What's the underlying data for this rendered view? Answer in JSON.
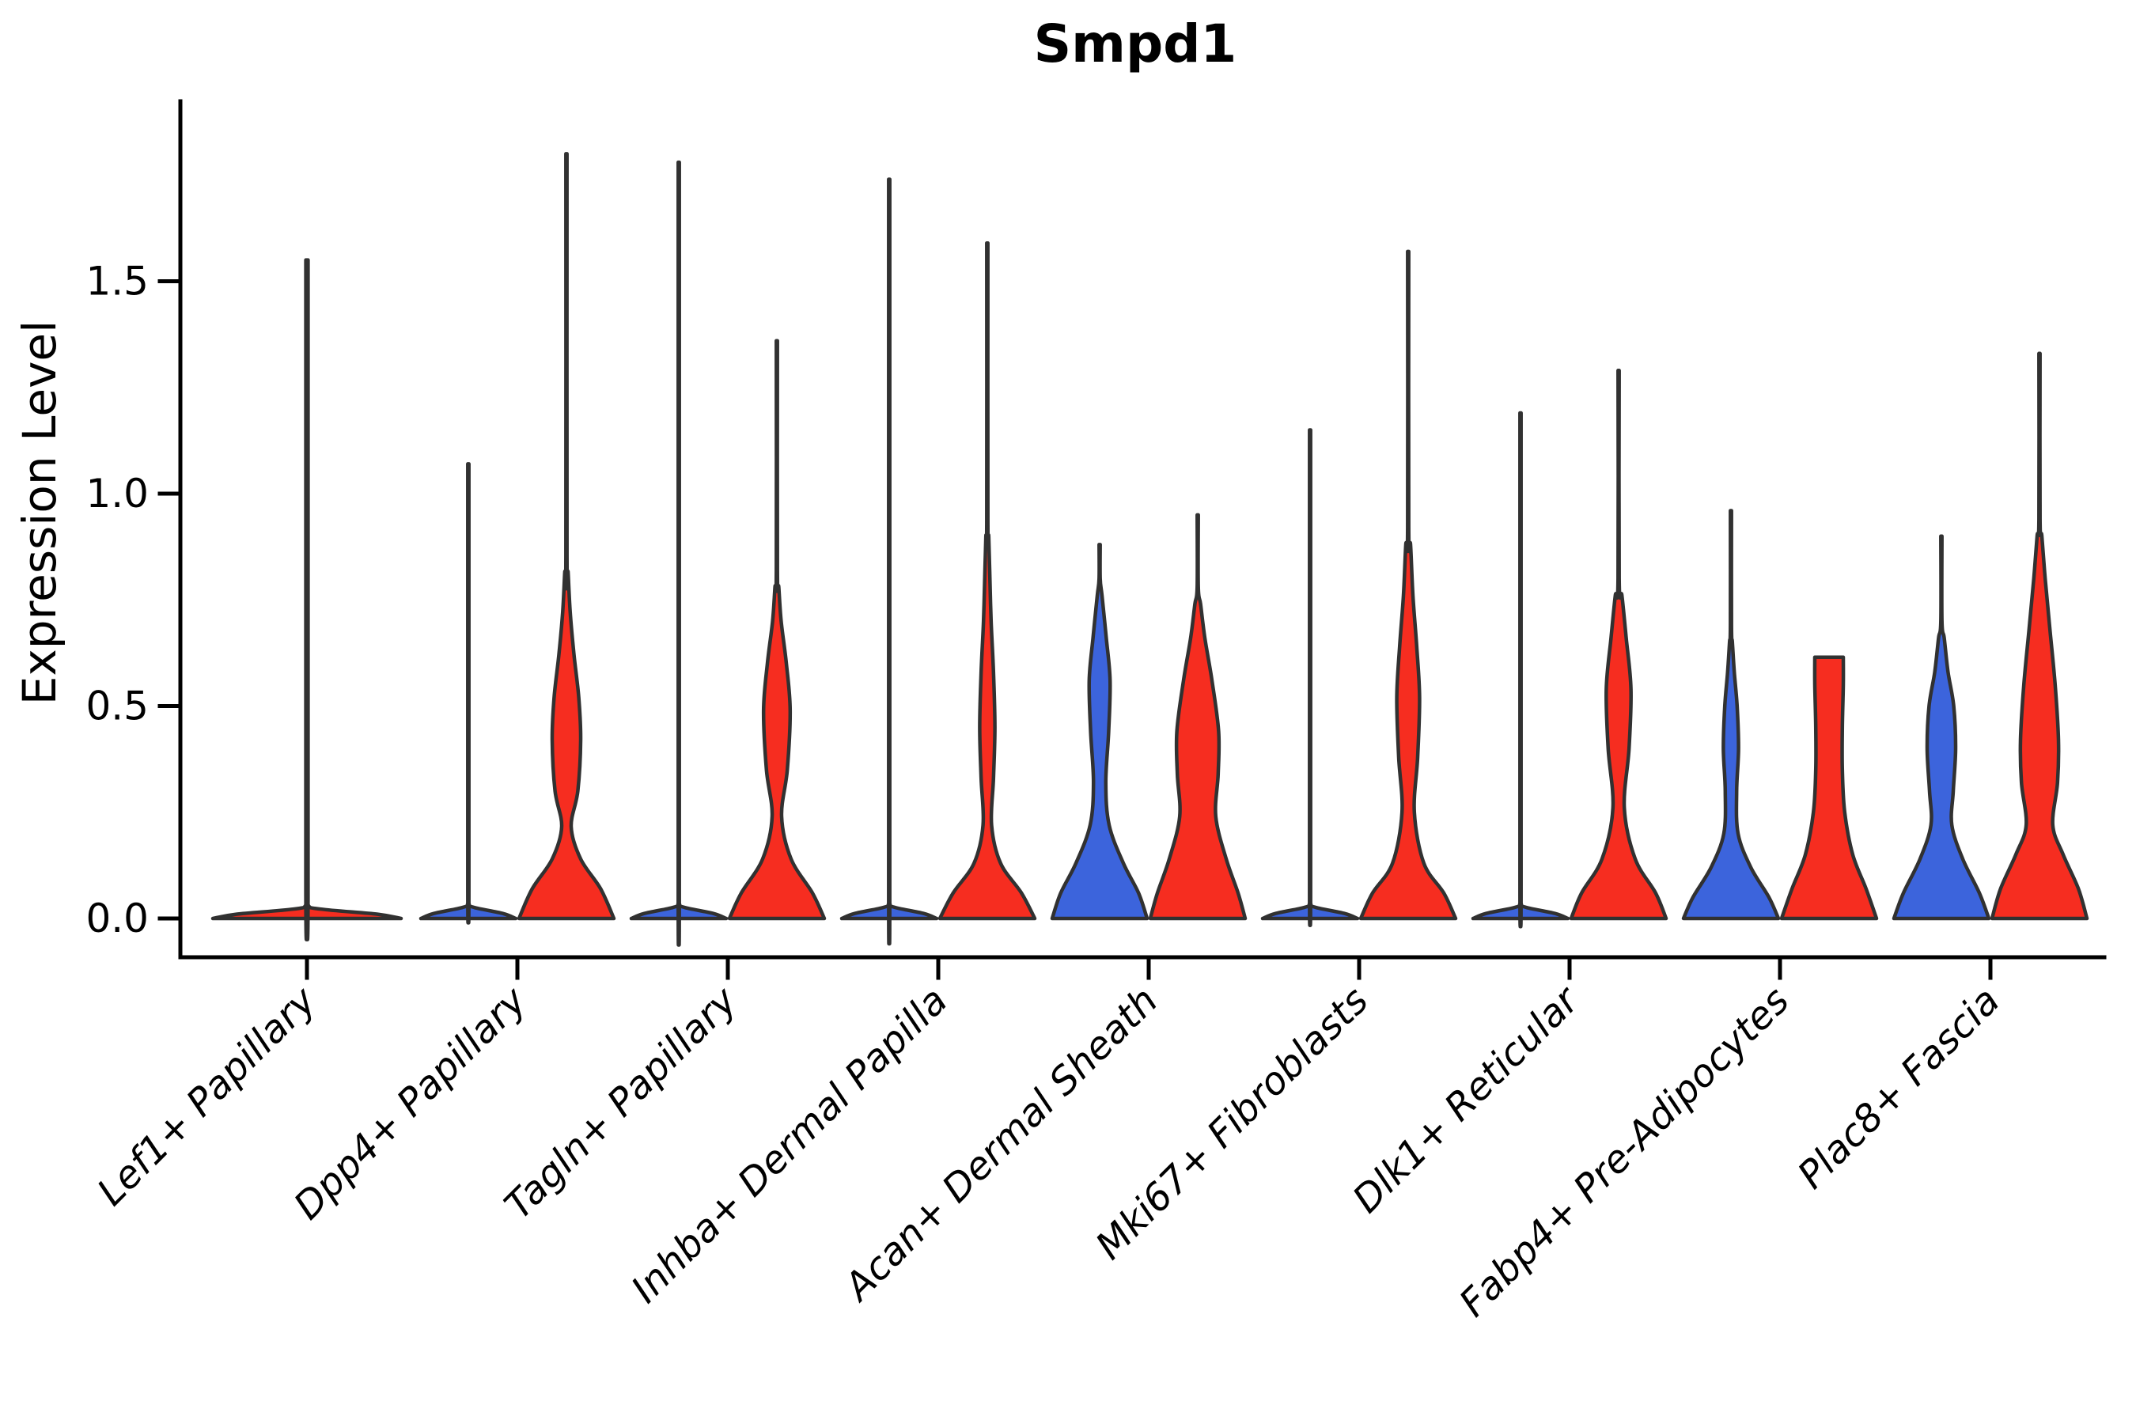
{
  "title": "Smpd1",
  "axes": {
    "ylabel": "Expression Level",
    "ytick_labels": [
      "0.0",
      "0.5",
      "1.0",
      "1.5"
    ]
  },
  "chart_data": {
    "type": "violin",
    "title": "Smpd1",
    "xlabel": "",
    "ylabel": "Expression Level",
    "ylim": [
      0,
      1.92
    ],
    "yticks": [
      0.0,
      0.5,
      1.0,
      1.5
    ],
    "grid": false,
    "legend_position": "none",
    "colors": {
      "blue": "#3c64dc",
      "red": "#f62d20",
      "outline": "#313131",
      "background": "#ffffff"
    },
    "categories": [
      "Lef1+ Papillary",
      "Dpp4+ Papillary",
      "Tagln+ Papillary",
      "Inhba+ Dermal Papilla",
      "Acan+ Dermal Sheath",
      "Mki67+ Fibroblasts",
      "Dlk1+ Reticular",
      "Fabp4+ Pre-Adipocytes",
      "Plac8+ Fascia"
    ],
    "violins": [
      {
        "category_index": 0,
        "side": "center",
        "color": "red",
        "max": 1.55,
        "flat_top": false,
        "profile": [
          [
            0,
            1
          ],
          [
            0.01,
            0.75
          ],
          [
            0.022,
            0.15
          ],
          [
            0.032,
            0.012
          ]
        ]
      },
      {
        "category_index": 1,
        "side": "left",
        "color": "blue",
        "max": 1.07,
        "flat_top": false,
        "profile": [
          [
            0,
            1
          ],
          [
            0.012,
            0.72
          ],
          [
            0.026,
            0.12
          ],
          [
            0.036,
            0.012
          ]
        ]
      },
      {
        "category_index": 1,
        "side": "right",
        "color": "red",
        "max": 1.8,
        "flat_top": false,
        "profile": [
          [
            0,
            1
          ],
          [
            0.07,
            0.72
          ],
          [
            0.14,
            0.3
          ],
          [
            0.216,
            0.1
          ],
          [
            0.3,
            0.24
          ],
          [
            0.42,
            0.3
          ],
          [
            0.52,
            0.26
          ],
          [
            0.62,
            0.16
          ],
          [
            0.72,
            0.08
          ],
          [
            0.815,
            0.035
          ]
        ]
      },
      {
        "category_index": 2,
        "side": "left",
        "color": "blue",
        "max": 1.78,
        "flat_top": false,
        "profile": [
          [
            0,
            1
          ],
          [
            0.012,
            0.72
          ],
          [
            0.026,
            0.12
          ],
          [
            0.036,
            0.012
          ]
        ]
      },
      {
        "category_index": 2,
        "side": "right",
        "color": "red",
        "max": 1.36,
        "flat_top": false,
        "profile": [
          [
            0,
            1
          ],
          [
            0.06,
            0.75
          ],
          [
            0.14,
            0.3
          ],
          [
            0.24,
            0.1
          ],
          [
            0.35,
            0.22
          ],
          [
            0.49,
            0.28
          ],
          [
            0.6,
            0.2
          ],
          [
            0.7,
            0.09
          ],
          [
            0.78,
            0.04
          ]
        ]
      },
      {
        "category_index": 3,
        "side": "left",
        "color": "blue",
        "max": 1.74,
        "flat_top": false,
        "profile": [
          [
            0,
            1
          ],
          [
            0.012,
            0.72
          ],
          [
            0.026,
            0.12
          ],
          [
            0.036,
            0.012
          ]
        ]
      },
      {
        "category_index": 3,
        "side": "right",
        "color": "red",
        "max": 1.59,
        "flat_top": false,
        "profile": [
          [
            0,
            1
          ],
          [
            0.06,
            0.72
          ],
          [
            0.13,
            0.28
          ],
          [
            0.22,
            0.09
          ],
          [
            0.33,
            0.13
          ],
          [
            0.45,
            0.16
          ],
          [
            0.58,
            0.13
          ],
          [
            0.7,
            0.08
          ],
          [
            0.82,
            0.05
          ],
          [
            0.9,
            0.03
          ]
        ]
      },
      {
        "category_index": 4,
        "side": "left",
        "color": "blue",
        "max": 0.88,
        "flat_top": false,
        "profile": [
          [
            0,
            1
          ],
          [
            0.06,
            0.82
          ],
          [
            0.13,
            0.5
          ],
          [
            0.22,
            0.2
          ],
          [
            0.32,
            0.13
          ],
          [
            0.44,
            0.19
          ],
          [
            0.56,
            0.22
          ],
          [
            0.66,
            0.14
          ],
          [
            0.76,
            0.05
          ]
        ]
      },
      {
        "category_index": 4,
        "side": "right",
        "color": "red",
        "max": 0.95,
        "flat_top": false,
        "profile": [
          [
            0,
            1
          ],
          [
            0.06,
            0.85
          ],
          [
            0.14,
            0.6
          ],
          [
            0.24,
            0.38
          ],
          [
            0.34,
            0.43
          ],
          [
            0.44,
            0.44
          ],
          [
            0.56,
            0.3
          ],
          [
            0.66,
            0.15
          ],
          [
            0.74,
            0.06
          ]
        ]
      },
      {
        "category_index": 5,
        "side": "left",
        "color": "blue",
        "max": 1.15,
        "flat_top": false,
        "profile": [
          [
            0,
            1
          ],
          [
            0.012,
            0.72
          ],
          [
            0.026,
            0.12
          ],
          [
            0.036,
            0.012
          ]
        ]
      },
      {
        "category_index": 5,
        "side": "right",
        "color": "red",
        "max": 1.57,
        "flat_top": false,
        "profile": [
          [
            0,
            1
          ],
          [
            0.06,
            0.75
          ],
          [
            0.13,
            0.33
          ],
          [
            0.25,
            0.13
          ],
          [
            0.38,
            0.2
          ],
          [
            0.52,
            0.24
          ],
          [
            0.64,
            0.18
          ],
          [
            0.76,
            0.1
          ],
          [
            0.88,
            0.05
          ]
        ]
      },
      {
        "category_index": 6,
        "side": "left",
        "color": "blue",
        "max": 1.19,
        "flat_top": false,
        "profile": [
          [
            0,
            1
          ],
          [
            0.012,
            0.72
          ],
          [
            0.026,
            0.12
          ],
          [
            0.036,
            0.012
          ]
        ]
      },
      {
        "category_index": 6,
        "side": "right",
        "color": "red",
        "max": 1.29,
        "flat_top": false,
        "profile": [
          [
            0,
            1
          ],
          [
            0.06,
            0.78
          ],
          [
            0.14,
            0.35
          ],
          [
            0.26,
            0.12
          ],
          [
            0.4,
            0.22
          ],
          [
            0.54,
            0.26
          ],
          [
            0.66,
            0.16
          ],
          [
            0.76,
            0.07
          ]
        ]
      },
      {
        "category_index": 7,
        "side": "left",
        "color": "blue",
        "max": 0.96,
        "flat_top": false,
        "profile": [
          [
            0,
            1
          ],
          [
            0.05,
            0.8
          ],
          [
            0.12,
            0.42
          ],
          [
            0.2,
            0.15
          ],
          [
            0.3,
            0.12
          ],
          [
            0.4,
            0.16
          ],
          [
            0.5,
            0.13
          ],
          [
            0.58,
            0.07
          ],
          [
            0.65,
            0.03
          ]
        ]
      },
      {
        "category_index": 7,
        "side": "right",
        "color": "red",
        "max": 0.615,
        "flat_top": true,
        "profile": [
          [
            0,
            1
          ],
          [
            0.07,
            0.78
          ],
          [
            0.15,
            0.5
          ],
          [
            0.25,
            0.33
          ],
          [
            0.35,
            0.28
          ],
          [
            0.45,
            0.28
          ],
          [
            0.55,
            0.3
          ],
          [
            0.615,
            0.3
          ]
        ]
      },
      {
        "category_index": 8,
        "side": "left",
        "color": "blue",
        "max": 0.9,
        "flat_top": false,
        "profile": [
          [
            0,
            1
          ],
          [
            0.06,
            0.8
          ],
          [
            0.14,
            0.45
          ],
          [
            0.22,
            0.22
          ],
          [
            0.3,
            0.25
          ],
          [
            0.4,
            0.3
          ],
          [
            0.5,
            0.26
          ],
          [
            0.58,
            0.14
          ],
          [
            0.66,
            0.06
          ]
        ]
      },
      {
        "category_index": 8,
        "side": "right",
        "color": "red",
        "max": 1.33,
        "flat_top": false,
        "profile": [
          [
            0,
            1
          ],
          [
            0.07,
            0.82
          ],
          [
            0.15,
            0.5
          ],
          [
            0.22,
            0.28
          ],
          [
            0.32,
            0.38
          ],
          [
            0.42,
            0.4
          ],
          [
            0.55,
            0.33
          ],
          [
            0.68,
            0.22
          ],
          [
            0.8,
            0.12
          ],
          [
            0.9,
            0.05
          ]
        ]
      }
    ]
  }
}
